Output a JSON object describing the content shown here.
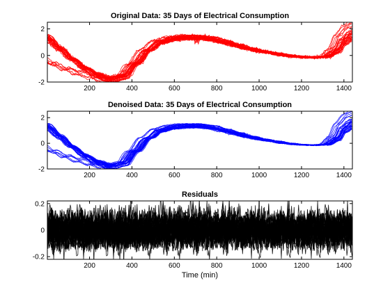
{
  "chart_data": [
    {
      "type": "line",
      "title": "Original Data: 35 Days of Electrical Consumption",
      "xlabel": "",
      "ylabel": "",
      "xlim": [
        1,
        1440
      ],
      "ylim": [
        -2,
        2.5
      ],
      "xticks": [
        200,
        400,
        600,
        800,
        1000,
        1200,
        1400
      ],
      "yticks": [
        -2,
        0,
        2
      ],
      "color": "#ff0000",
      "series_count": 35,
      "mean_profile": {
        "x": [
          1,
          60,
          120,
          180,
          240,
          300,
          360,
          420,
          480,
          540,
          600,
          660,
          720,
          780,
          840,
          900,
          960,
          1020,
          1080,
          1140,
          1200,
          1260,
          1320,
          1370,
          1400,
          1440
        ],
        "y": [
          1.0,
          0.3,
          -0.4,
          -1.0,
          -1.5,
          -1.8,
          -1.6,
          -0.6,
          0.4,
          1.0,
          1.25,
          1.35,
          1.35,
          1.25,
          1.0,
          0.75,
          0.5,
          0.3,
          0.15,
          0.0,
          -0.1,
          -0.15,
          -0.1,
          0.3,
          1.0,
          1.4
        ]
      },
      "grid": false
    },
    {
      "type": "line",
      "title": "Denoised Data: 35 Days of Electrical Consumption",
      "xlabel": "",
      "ylabel": "",
      "xlim": [
        1,
        1440
      ],
      "ylim": [
        -2,
        2.5
      ],
      "xticks": [
        200,
        400,
        600,
        800,
        1000,
        1200,
        1400
      ],
      "yticks": [
        -2,
        0,
        2
      ],
      "color": "#0000ff",
      "series_count": 35,
      "mean_profile": {
        "x": [
          1,
          60,
          120,
          180,
          240,
          300,
          360,
          420,
          480,
          540,
          600,
          660,
          720,
          780,
          840,
          900,
          960,
          1020,
          1080,
          1140,
          1200,
          1260,
          1320,
          1370,
          1400,
          1440
        ],
        "y": [
          1.0,
          0.3,
          -0.4,
          -1.0,
          -1.5,
          -1.8,
          -1.6,
          -0.6,
          0.4,
          1.0,
          1.25,
          1.35,
          1.35,
          1.25,
          1.0,
          0.75,
          0.5,
          0.3,
          0.15,
          0.0,
          -0.1,
          -0.15,
          -0.1,
          0.3,
          1.0,
          1.4
        ]
      },
      "grid": false
    },
    {
      "type": "line",
      "title": "Residuals",
      "xlabel": "Time (min)",
      "ylabel": "",
      "xlim": [
        1,
        1440
      ],
      "ylim": [
        -0.22,
        0.22
      ],
      "xticks": [
        200,
        400,
        600,
        800,
        1000,
        1200,
        1400
      ],
      "yticks": [
        -0.2,
        0,
        0.2
      ],
      "color": "#000000",
      "series_count": 35,
      "amplitude": 0.12,
      "grid": false
    }
  ]
}
